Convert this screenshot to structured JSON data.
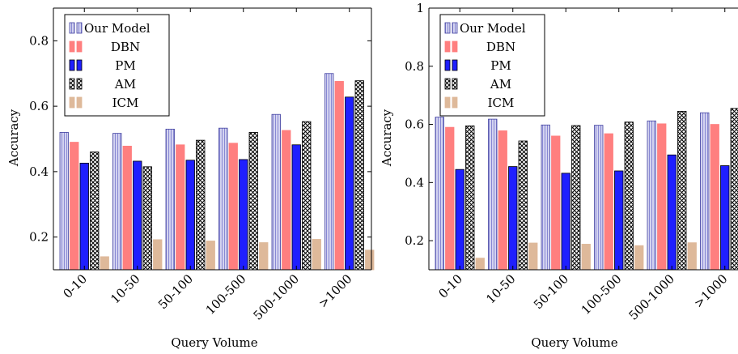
{
  "chart_data": [
    {
      "type": "bar",
      "xlabel": "Query Volume",
      "ylabel": "Accuracy",
      "ylim": [
        0.1,
        0.9
      ],
      "yticks": [
        0.2,
        0.4,
        0.6,
        0.8
      ],
      "yticklabels": [
        "0.2",
        "0.4",
        "0.6",
        "0.8"
      ],
      "categories": [
        "0-10",
        "10-50",
        "50-100",
        "100-500",
        "500-1000",
        ">1000"
      ],
      "legend_position": "top-left",
      "series": [
        {
          "name": "Our Model",
          "values": [
            0.52,
            0.517,
            0.53,
            0.533,
            0.575,
            0.7
          ]
        },
        {
          "name": "DBN",
          "values": [
            0.49,
            0.478,
            0.482,
            0.487,
            0.526,
            0.676
          ]
        },
        {
          "name": "PM",
          "values": [
            0.426,
            0.432,
            0.435,
            0.437,
            0.482,
            0.628
          ]
        },
        {
          "name": "AM",
          "values": [
            0.46,
            0.415,
            0.496,
            0.52,
            0.553,
            0.678
          ]
        },
        {
          "name": "ICM",
          "values": [
            0.14,
            0.192,
            0.188,
            0.183,
            0.193,
            0.16
          ]
        }
      ]
    },
    {
      "type": "bar",
      "xlabel": "Query Volume",
      "ylabel": "Accuracy",
      "ylim": [
        0.1,
        1.0
      ],
      "yticks": [
        0.2,
        0.4,
        0.6,
        0.8,
        1.0
      ],
      "yticklabels": [
        "0.2",
        "0.4",
        "0.6",
        "0.8",
        "1"
      ],
      "categories": [
        "0-10",
        "10-50",
        "50-100",
        "100-500",
        "500-1000",
        ">1000"
      ],
      "legend_position": "top-left",
      "series": [
        {
          "name": "Our Model",
          "values": [
            0.625,
            0.618,
            0.598,
            0.597,
            0.612,
            0.64
          ]
        },
        {
          "name": "DBN",
          "values": [
            0.59,
            0.578,
            0.56,
            0.568,
            0.602,
            0.6
          ]
        },
        {
          "name": "PM",
          "values": [
            0.445,
            0.455,
            0.432,
            0.44,
            0.495,
            0.458
          ]
        },
        {
          "name": "AM",
          "values": [
            0.595,
            0.543,
            0.596,
            0.608,
            0.645,
            0.655
          ]
        },
        {
          "name": "ICM",
          "values": [
            0.14,
            0.192,
            0.188,
            0.183,
            0.193,
            0.16
          ]
        }
      ]
    }
  ],
  "series_styles": [
    {
      "fill": "#d3d3f0",
      "stroke": "#4040a0",
      "pattern": "vlines"
    },
    {
      "fill": "#ff7f7f",
      "stroke": "#ff7f7f",
      "pattern": "none"
    },
    {
      "fill": "#1f1fff",
      "stroke": "#000000",
      "pattern": "none"
    },
    {
      "fill": "#ffffff",
      "stroke": "#000000",
      "pattern": "crosshatch"
    },
    {
      "fill": "#deb99a",
      "stroke": "#deb99a",
      "pattern": "none"
    }
  ]
}
